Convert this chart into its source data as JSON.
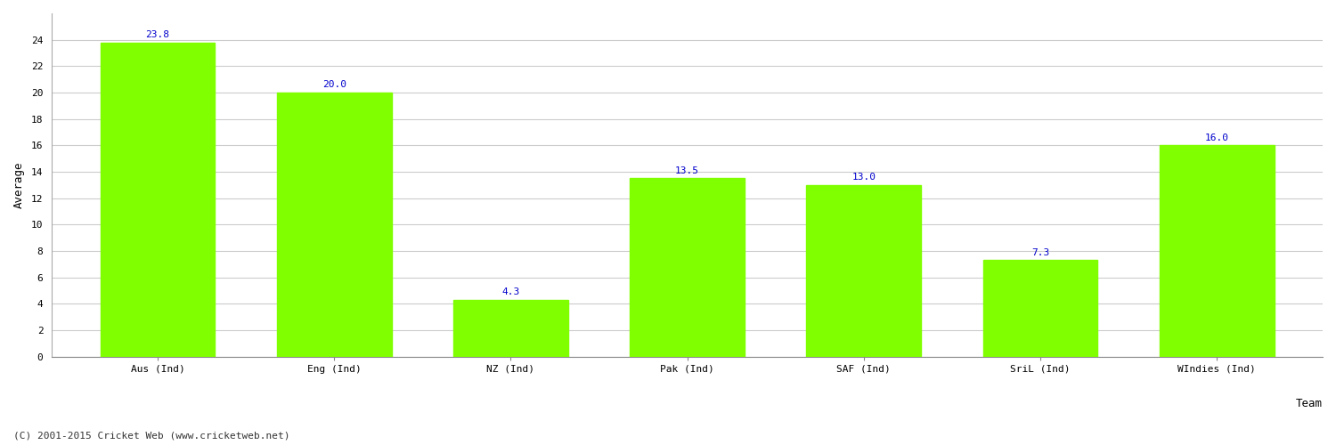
{
  "categories": [
    "Aus (Ind)",
    "Eng (Ind)",
    "NZ (Ind)",
    "Pak (Ind)",
    "SAF (Ind)",
    "SriL (Ind)",
    "WIndies (Ind)"
  ],
  "values": [
    23.8,
    20.0,
    4.3,
    13.5,
    13.0,
    7.3,
    16.0
  ],
  "bar_color": "#7FFF00",
  "bar_edge_color": "#7FFF00",
  "value_label_color": "#0000CC",
  "value_label_fontsize": 8,
  "xlabel": "Team",
  "ylabel": "Average",
  "ylabel_fontsize": 9,
  "xlabel_fontsize": 9,
  "ylim": [
    0,
    26
  ],
  "yticks": [
    0,
    2,
    4,
    6,
    8,
    10,
    12,
    14,
    16,
    18,
    20,
    22,
    24
  ],
  "grid_color": "#cccccc",
  "background_color": "#ffffff",
  "tick_label_fontsize": 8,
  "copyright_text": "(C) 2001-2015 Cricket Web (www.cricketweb.net)",
  "copyright_fontsize": 8,
  "copyright_color": "#333333",
  "bar_width": 0.65
}
